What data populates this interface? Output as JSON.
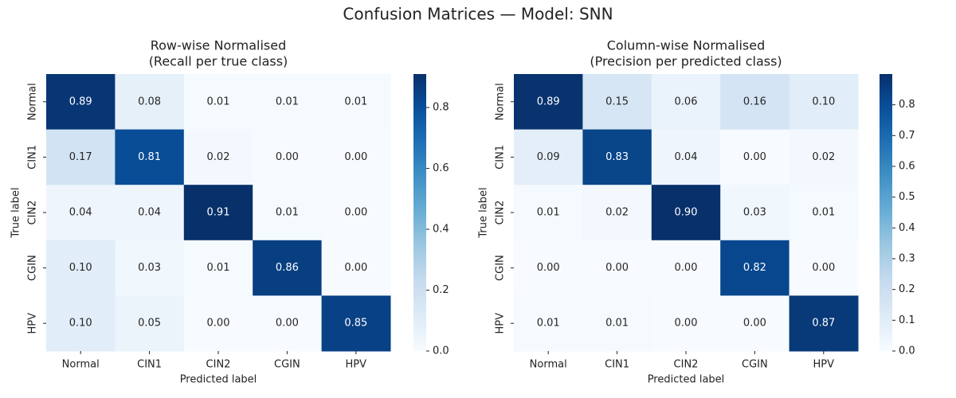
{
  "title": "Confusion Matrices — Model: SNN",
  "chart_data": [
    {
      "type": "heatmap",
      "title": "Row-wise Normalised",
      "subtitle": "(Recall per true class)",
      "x_label": "Predicted label",
      "y_label": "True label",
      "categories": [
        "Normal",
        "CIN1",
        "CIN2",
        "CGIN",
        "HPV"
      ],
      "y_categories": [
        "Normal",
        "CIN1",
        "CIN2",
        "CGIN",
        "HPV"
      ],
      "values": [
        [
          0.89,
          0.08,
          0.01,
          0.01,
          0.01
        ],
        [
          0.17,
          0.81,
          0.02,
          0,
          0
        ],
        [
          0.04,
          0.04,
          0.91,
          0.01,
          0
        ],
        [
          0.1,
          0.03,
          0.01,
          0.86,
          0
        ],
        [
          0.1,
          0.05,
          0,
          0,
          0.85
        ]
      ],
      "value_labels": [
        [
          "0.89",
          "0.08",
          "0.01",
          "0.01",
          "0.01"
        ],
        [
          "0.17",
          "0.81",
          "0.02",
          "0.00",
          "0.00"
        ],
        [
          "0.04",
          "0.04",
          "0.91",
          "0.01",
          "0.00"
        ],
        [
          "0.10",
          "0.03",
          "0.01",
          "0.86",
          "0.00"
        ],
        [
          "0.10",
          "0.05",
          "0.00",
          "0.00",
          "0.85"
        ]
      ],
      "colormap": "Blues",
      "clim": [
        0,
        0.91
      ],
      "cticks": [
        {
          "value": 0,
          "label": "0.0"
        },
        {
          "value": 0.2,
          "label": "0.2"
        },
        {
          "value": 0.4,
          "label": "0.4"
        },
        {
          "value": 0.6,
          "label": "0.6"
        },
        {
          "value": 0.8,
          "label": "0.8"
        }
      ]
    },
    {
      "type": "heatmap",
      "title": "Column-wise Normalised",
      "subtitle": "(Precision per predicted class)",
      "x_label": "Predicted label",
      "y_label": "True label",
      "categories": [
        "Normal",
        "CIN1",
        "CIN2",
        "CGIN",
        "HPV"
      ],
      "y_categories": [
        "Normal",
        "CIN1",
        "CIN2",
        "CGIN",
        "HPV"
      ],
      "values": [
        [
          0.89,
          0.15,
          0.06,
          0.16,
          0.1
        ],
        [
          0.09,
          0.83,
          0.04,
          0,
          0.02
        ],
        [
          0.01,
          0.02,
          0.9,
          0.03,
          0.01
        ],
        [
          0,
          0,
          0,
          0.82,
          0
        ],
        [
          0.01,
          0.01,
          0,
          0,
          0.87
        ]
      ],
      "value_labels": [
        [
          "0.89",
          "0.15",
          "0.06",
          "0.16",
          "0.10"
        ],
        [
          "0.09",
          "0.83",
          "0.04",
          "0.00",
          "0.02"
        ],
        [
          "0.01",
          "0.02",
          "0.90",
          "0.03",
          "0.01"
        ],
        [
          "0.00",
          "0.00",
          "0.00",
          "0.82",
          "0.00"
        ],
        [
          "0.01",
          "0.01",
          "0.00",
          "0.00",
          "0.87"
        ]
      ],
      "colormap": "Blues",
      "clim": [
        0,
        0.9
      ],
      "cticks": [
        {
          "value": 0,
          "label": "0.0"
        },
        {
          "value": 0.1,
          "label": "0.1"
        },
        {
          "value": 0.2,
          "label": "0.2"
        },
        {
          "value": 0.3,
          "label": "0.3"
        },
        {
          "value": 0.4,
          "label": "0.4"
        },
        {
          "value": 0.5,
          "label": "0.5"
        },
        {
          "value": 0.6,
          "label": "0.6"
        },
        {
          "value": 0.7,
          "label": "0.7"
        },
        {
          "value": 0.8,
          "label": "0.8"
        }
      ]
    }
  ]
}
